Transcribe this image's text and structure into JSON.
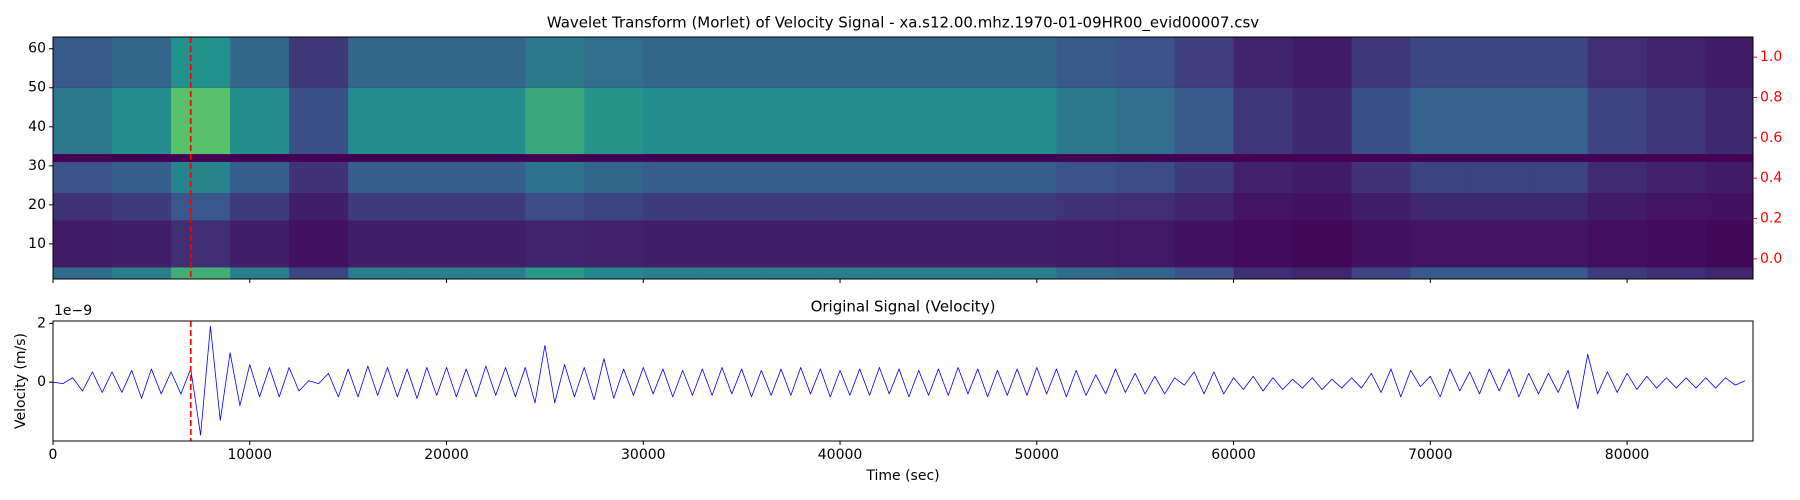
{
  "chart_data": [
    {
      "type": "heatmap",
      "title": "Wavelet Transform (Morlet) of Velocity Signal - xa.s12.00.mhz.1970-01-09HR00_evid00007.csv",
      "xlim": [
        0,
        86400
      ],
      "xticks": [
        0,
        10000,
        20000,
        30000,
        40000,
        50000,
        60000,
        70000,
        80000
      ],
      "xtick_labels": false,
      "ylim": [
        1,
        63
      ],
      "yticks": [
        10,
        20,
        30,
        40,
        50,
        60
      ],
      "y2lim": [
        -0.1,
        1.1
      ],
      "y2ticks": [
        {
          "value": 0,
          "label": "0.0"
        },
        0.2,
        0.4,
        0.6,
        0.8,
        {
          "value": 1,
          "label": "1.0"
        }
      ],
      "y2_tick_color": "red",
      "colormap": "viridis",
      "x_edges": [
        0,
        3000,
        6000,
        9000,
        12000,
        15000,
        18000,
        21000,
        24000,
        27000,
        30000,
        33000,
        36000,
        39000,
        42000,
        45000,
        48000,
        51000,
        54000,
        57000,
        60000,
        63000,
        66000,
        69000,
        72000,
        75000,
        78000,
        81000,
        84000,
        86400
      ],
      "y_bands": [
        [
          1,
          4
        ],
        [
          4,
          16
        ],
        [
          16,
          23
        ],
        [
          23,
          31
        ],
        [
          33,
          50
        ],
        [
          50,
          63
        ]
      ],
      "z": [
        [
          0.35,
          0.42,
          0.63,
          0.42,
          0.21,
          0.42,
          0.42,
          0.42,
          0.53,
          0.46,
          0.42,
          0.42,
          0.42,
          0.42,
          0.42,
          0.42,
          0.42,
          0.35,
          0.32,
          0.25,
          0.14,
          0.11,
          0.21,
          0.28,
          0.28,
          0.28,
          0.18,
          0.14,
          0.11
        ],
        [
          0.08,
          0.09,
          0.14,
          0.09,
          0.05,
          0.09,
          0.09,
          0.09,
          0.11,
          0.1,
          0.09,
          0.09,
          0.09,
          0.09,
          0.09,
          0.09,
          0.09,
          0.08,
          0.07,
          0.05,
          0.03,
          0.02,
          0.05,
          0.06,
          0.06,
          0.06,
          0.04,
          0.03,
          0.02
        ],
        [
          0.15,
          0.18,
          0.27,
          0.18,
          0.09,
          0.18,
          0.18,
          0.18,
          0.23,
          0.2,
          0.18,
          0.18,
          0.18,
          0.18,
          0.18,
          0.18,
          0.18,
          0.15,
          0.14,
          0.11,
          0.06,
          0.05,
          0.09,
          0.12,
          0.12,
          0.12,
          0.08,
          0.06,
          0.05
        ],
        [
          0.25,
          0.3,
          0.45,
          0.3,
          0.15,
          0.3,
          0.3,
          0.3,
          0.38,
          0.33,
          0.3,
          0.3,
          0.3,
          0.3,
          0.3,
          0.3,
          0.3,
          0.25,
          0.23,
          0.18,
          0.1,
          0.08,
          0.15,
          0.2,
          0.2,
          0.2,
          0.13,
          0.1,
          0.08
        ],
        [
          0.4,
          0.48,
          0.72,
          0.48,
          0.24,
          0.48,
          0.48,
          0.48,
          0.6,
          0.52,
          0.48,
          0.48,
          0.48,
          0.48,
          0.48,
          0.48,
          0.48,
          0.4,
          0.36,
          0.28,
          0.16,
          0.12,
          0.24,
          0.32,
          0.32,
          0.32,
          0.2,
          0.16,
          0.12
        ],
        [
          0.28,
          0.33,
          0.5,
          0.33,
          0.17,
          0.33,
          0.33,
          0.33,
          0.41,
          0.36,
          0.33,
          0.33,
          0.33,
          0.33,
          0.33,
          0.33,
          0.33,
          0.28,
          0.25,
          0.19,
          0.11,
          0.08,
          0.17,
          0.22,
          0.22,
          0.22,
          0.14,
          0.11,
          0.08
        ]
      ],
      "vline": {
        "x": 7000,
        "color": "red",
        "style": "dashed"
      }
    },
    {
      "type": "line",
      "title": "Original Signal (Velocity)",
      "xlabel": "Time (sec)",
      "ylabel": "Velocity (m/s)",
      "y_offset_label": "1e−9",
      "xlim": [
        0,
        86400
      ],
      "xticks": [
        0,
        10000,
        20000,
        30000,
        40000,
        50000,
        60000,
        70000,
        80000
      ],
      "ylim": [
        -2.0,
        2.08
      ],
      "yticks": [
        0,
        2
      ],
      "x": [
        0,
        500,
        1000,
        1500,
        2000,
        2500,
        3000,
        3500,
        4000,
        4500,
        5000,
        5500,
        6000,
        6500,
        7000,
        7500,
        8000,
        8500,
        9000,
        9500,
        10000,
        10500,
        11000,
        11500,
        12000,
        12500,
        13000,
        13500,
        14000,
        14500,
        15000,
        15500,
        16000,
        16500,
        17000,
        17500,
        18000,
        18500,
        19000,
        19500,
        20000,
        20500,
        21000,
        21500,
        22000,
        22500,
        23000,
        23500,
        24000,
        24500,
        25000,
        25500,
        26000,
        26500,
        27000,
        27500,
        28000,
        28500,
        29000,
        29500,
        30000,
        30500,
        31000,
        31500,
        32000,
        32500,
        33000,
        33500,
        34000,
        34500,
        35000,
        35500,
        36000,
        36500,
        37000,
        37500,
        38000,
        38500,
        39000,
        39500,
        40000,
        40500,
        41000,
        41500,
        42000,
        42500,
        43000,
        43500,
        44000,
        44500,
        45000,
        45500,
        46000,
        46500,
        47000,
        47500,
        48000,
        48500,
        49000,
        49500,
        50000,
        50500,
        51000,
        51500,
        52000,
        52500,
        53000,
        53500,
        54000,
        54500,
        55000,
        55500,
        56000,
        56500,
        57000,
        57500,
        58000,
        58500,
        59000,
        59500,
        60000,
        60500,
        61000,
        61500,
        62000,
        62500,
        63000,
        63500,
        64000,
        64500,
        65000,
        65500,
        66000,
        66500,
        67000,
        67500,
        68000,
        68500,
        69000,
        69500,
        70000,
        70500,
        71000,
        71500,
        72000,
        72500,
        73000,
        73500,
        74000,
        74500,
        75000,
        75500,
        76000,
        76500,
        77000,
        77500,
        78000,
        78500,
        79000,
        79500,
        80000,
        80500,
        81000,
        81500,
        82000,
        82500,
        83000,
        83500,
        84000,
        84500,
        85000,
        85500,
        86000
      ],
      "series": [
        {
          "color": "blue",
          "values": [
            0,
            -0.05,
            0.15,
            -0.3,
            0.35,
            -0.35,
            0.35,
            -0.35,
            0.4,
            -0.55,
            0.45,
            -0.4,
            0.35,
            -0.4,
            0.45,
            -1.8,
            1.9,
            -1.3,
            1.0,
            -0.8,
            0.6,
            -0.5,
            0.5,
            -0.5,
            0.5,
            -0.3,
            0.05,
            -0.05,
            0.3,
            -0.5,
            0.45,
            -0.5,
            0.55,
            -0.45,
            0.5,
            -0.5,
            0.45,
            -0.55,
            0.5,
            -0.45,
            0.5,
            -0.5,
            0.45,
            -0.5,
            0.55,
            -0.45,
            0.5,
            -0.5,
            0.5,
            -0.7,
            1.25,
            -0.7,
            0.6,
            -0.5,
            0.5,
            -0.6,
            0.8,
            -0.55,
            0.45,
            -0.45,
            0.5,
            -0.4,
            0.45,
            -0.5,
            0.4,
            -0.45,
            0.45,
            -0.45,
            0.5,
            -0.4,
            0.45,
            -0.5,
            0.4,
            -0.45,
            0.45,
            -0.45,
            0.5,
            -0.4,
            0.45,
            -0.5,
            0.4,
            -0.45,
            0.45,
            -0.45,
            0.5,
            -0.4,
            0.45,
            -0.5,
            0.4,
            -0.45,
            0.45,
            -0.45,
            0.5,
            -0.4,
            0.45,
            -0.5,
            0.4,
            -0.45,
            0.45,
            -0.45,
            0.5,
            -0.4,
            0.45,
            -0.5,
            0.4,
            -0.45,
            0.25,
            -0.4,
            0.45,
            -0.35,
            0.3,
            -0.4,
            0.2,
            -0.4,
            0.15,
            -0.1,
            0.35,
            -0.4,
            0.35,
            -0.4,
            0.15,
            -0.25,
            0.2,
            -0.3,
            0.15,
            -0.25,
            0.1,
            -0.2,
            0.15,
            -0.25,
            0.1,
            -0.2,
            0.15,
            -0.2,
            0.3,
            -0.35,
            0.45,
            -0.5,
            0.4,
            -0.15,
            0.2,
            -0.5,
            0.45,
            -0.3,
            0.35,
            -0.4,
            0.45,
            -0.3,
            0.45,
            -0.5,
            0.3,
            -0.4,
            0.3,
            -0.35,
            0.4,
            -0.9,
            0.95,
            -0.4,
            0.35,
            -0.35,
            0.3,
            -0.25,
            0.2,
            -0.2,
            0.15,
            -0.2,
            0.15,
            -0.2,
            0.15,
            -0.2,
            0.15,
            -0.1,
            0.05
          ]
        }
      ],
      "vline": {
        "x": 7000,
        "color": "red",
        "style": "dashed"
      }
    }
  ]
}
